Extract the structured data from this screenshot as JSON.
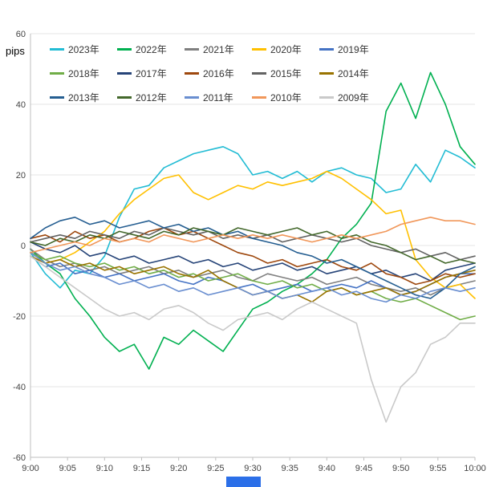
{
  "window": {
    "background_color": "#FFFFFF",
    "taskbar_fragment_color": "#2B6FE8"
  },
  "chart_data": {
    "type": "line",
    "title": "",
    "xlabel": "",
    "ylabel": "pips",
    "ylim": [
      -60,
      60
    ],
    "yticks": [
      60,
      40,
      20,
      0,
      -20,
      -40,
      -60
    ],
    "x_tick_labels": [
      "9:00",
      "9:05",
      "9:10",
      "9:15",
      "9:20",
      "9:25",
      "9:30",
      "9:35",
      "9:40",
      "9:45",
      "9:50",
      "9:55",
      "10:00"
    ],
    "x_time_range": [
      "9:00",
      "10:00"
    ],
    "x_minutes_step": 2,
    "grid": true,
    "legend_position": "top-inside",
    "axis_color": "#BFBFBF",
    "gridline_color": "#E4E4E4",
    "series": [
      {
        "name": "2023年",
        "color": "#22BCD4",
        "values": [
          -2,
          -8,
          -12,
          -7,
          -8,
          -3,
          8,
          16,
          17,
          22,
          24,
          26,
          27,
          28,
          26,
          20,
          21,
          19,
          21,
          18,
          21,
          22,
          20,
          19,
          15,
          16,
          23,
          18,
          27,
          25,
          22
        ]
      },
      {
        "name": "2022年",
        "color": "#00B050",
        "values": [
          -1,
          -5,
          -8,
          -15,
          -20,
          -26,
          -30,
          -28,
          -35,
          -26,
          -28,
          -24,
          -27,
          -30,
          -24,
          -18,
          -16,
          -13,
          -11,
          -8,
          -4,
          2,
          6,
          12,
          38,
          46,
          36,
          49,
          40,
          28,
          23
        ]
      },
      {
        "name": "2021年",
        "color": "#7F7F7F",
        "values": [
          -1,
          -4,
          -6,
          -5,
          -7,
          -6,
          -8,
          -7,
          -6,
          -8,
          -7,
          -9,
          -8,
          -7,
          -9,
          -10,
          -8,
          -9,
          -10,
          -9,
          -11,
          -10,
          -9,
          -11,
          -12,
          -13,
          -12,
          -14,
          -12,
          -11,
          -10
        ]
      },
      {
        "name": "2020年",
        "color": "#FFC000",
        "values": [
          -2,
          -5,
          -4,
          -2,
          1,
          4,
          9,
          13,
          16,
          19,
          20,
          15,
          13,
          15,
          17,
          16,
          18,
          17,
          18,
          19,
          21,
          19,
          16,
          13,
          9,
          10,
          -4,
          -9,
          -12,
          -11,
          -15
        ]
      },
      {
        "name": "2019年",
        "color": "#4472C4",
        "values": [
          -3,
          -6,
          -5,
          -8,
          -7,
          -9,
          -8,
          -10,
          -9,
          -8,
          -10,
          -11,
          -9,
          -10,
          -12,
          -11,
          -13,
          -12,
          -11,
          -13,
          -12,
          -11,
          -12,
          -10,
          -12,
          -14,
          -13,
          -11,
          -9,
          -8,
          -8
        ]
      },
      {
        "name": "2018年",
        "color": "#70AD47",
        "values": [
          -2,
          -4,
          -3,
          -5,
          -6,
          -5,
          -7,
          -6,
          -8,
          -7,
          -9,
          -8,
          -10,
          -9,
          -8,
          -10,
          -11,
          -10,
          -12,
          -11,
          -13,
          -12,
          -14,
          -13,
          -15,
          -16,
          -15,
          -17,
          -19,
          -21,
          -20
        ]
      },
      {
        "name": "2017年",
        "color": "#264478",
        "values": [
          1,
          -1,
          -2,
          0,
          -3,
          -2,
          -4,
          -3,
          -5,
          -4,
          -3,
          -5,
          -4,
          -6,
          -5,
          -7,
          -6,
          -5,
          -7,
          -6,
          -8,
          -7,
          -6,
          -8,
          -7,
          -9,
          -8,
          -10,
          -7,
          -6,
          -5
        ]
      },
      {
        "name": "2016年",
        "color": "#9E480E",
        "values": [
          2,
          3,
          1,
          4,
          2,
          3,
          1,
          2,
          4,
          5,
          3,
          4,
          2,
          0,
          -2,
          -3,
          -5,
          -4,
          -6,
          -5,
          -4,
          -6,
          -7,
          -5,
          -8,
          -9,
          -11,
          -10,
          -8,
          -9,
          -8
        ]
      },
      {
        "name": "2015年",
        "color": "#636363",
        "values": [
          1,
          2,
          3,
          2,
          4,
          3,
          2,
          4,
          3,
          5,
          4,
          3,
          4,
          2,
          3,
          2,
          3,
          1,
          2,
          3,
          2,
          1,
          2,
          0,
          -1,
          -2,
          -1,
          -3,
          -2,
          -4,
          -3
        ]
      },
      {
        "name": "2014年",
        "color": "#997300",
        "values": [
          -3,
          -5,
          -4,
          -6,
          -5,
          -7,
          -6,
          -8,
          -7,
          -6,
          -8,
          -9,
          -7,
          -10,
          -12,
          -14,
          -13,
          -15,
          -14,
          -16,
          -13,
          -12,
          -14,
          -13,
          -12,
          -14,
          -13,
          -11,
          -9,
          -8,
          -7
        ]
      },
      {
        "name": "2013年",
        "color": "#255E91",
        "values": [
          2,
          5,
          7,
          8,
          6,
          7,
          5,
          6,
          7,
          5,
          6,
          4,
          5,
          3,
          4,
          2,
          1,
          0,
          -2,
          -3,
          -5,
          -4,
          -6,
          -8,
          -10,
          -12,
          -14,
          -15,
          -12,
          -8,
          -6
        ]
      },
      {
        "name": "2012年",
        "color": "#43682B",
        "values": [
          1,
          0,
          2,
          1,
          3,
          2,
          4,
          3,
          2,
          4,
          3,
          5,
          4,
          3,
          5,
          4,
          3,
          4,
          5,
          3,
          4,
          2,
          3,
          1,
          0,
          -2,
          -4,
          -3,
          -5,
          -4,
          -5
        ]
      },
      {
        "name": "2011年",
        "color": "#698ED0",
        "values": [
          -2,
          -5,
          -7,
          -6,
          -8,
          -9,
          -11,
          -10,
          -12,
          -11,
          -13,
          -12,
          -14,
          -13,
          -12,
          -14,
          -13,
          -15,
          -14,
          -13,
          -12,
          -14,
          -13,
          -15,
          -16,
          -14,
          -15,
          -13,
          -12,
          -13,
          -12
        ]
      },
      {
        "name": "2010年",
        "color": "#F1975A",
        "values": [
          -2,
          -1,
          0,
          1,
          0,
          2,
          1,
          2,
          1,
          3,
          2,
          1,
          2,
          3,
          2,
          3,
          2,
          3,
          2,
          1,
          2,
          3,
          2,
          3,
          4,
          6,
          7,
          8,
          7,
          7,
          6
        ]
      },
      {
        "name": "2009年",
        "color": "#C9C9C9",
        "values": [
          -3,
          -6,
          -9,
          -12,
          -15,
          -18,
          -20,
          -19,
          -21,
          -18,
          -17,
          -19,
          -22,
          -24,
          -21,
          -20,
          -19,
          -21,
          -18,
          -16,
          -18,
          -20,
          -22,
          -38,
          -50,
          -40,
          -36,
          -28,
          -26,
          -22,
          -22
        ]
      }
    ]
  }
}
